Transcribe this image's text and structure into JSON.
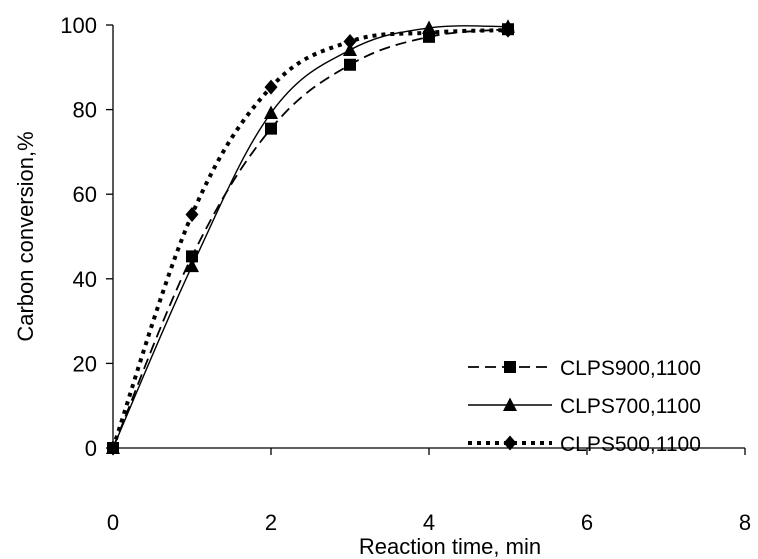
{
  "chart_data": {
    "type": "line",
    "title": "",
    "xlabel": "Reaction time, min",
    "ylabel": "Carbon conversion,%",
    "xlim": [
      0,
      8
    ],
    "ylim": [
      0,
      100
    ],
    "x_ticks": [
      "0",
      "2",
      "4",
      "6",
      "8"
    ],
    "y_ticks": [
      "0",
      "20",
      "40",
      "60",
      "80",
      "100"
    ],
    "grid": false,
    "legend_position": "bottom-right",
    "series": [
      {
        "name": "CLPS900,1100",
        "marker": "square",
        "line_style": "dashed",
        "points": [
          [
            0,
            0
          ],
          [
            1,
            45.3
          ],
          [
            2,
            75.5
          ],
          [
            3,
            90.6
          ],
          [
            4,
            97.2
          ],
          [
            5,
            99.0
          ]
        ]
      },
      {
        "name": "CLPS700,1100",
        "marker": "triangle",
        "line_style": "solid",
        "points": [
          [
            0,
            0
          ],
          [
            1,
            43.0
          ],
          [
            2,
            79.2
          ],
          [
            3,
            94.1
          ],
          [
            4,
            99.3
          ],
          [
            5,
            99.6
          ]
        ]
      },
      {
        "name": "CLPS500,1100",
        "marker": "diamond",
        "line_style": "dotted",
        "points": [
          [
            0,
            0
          ],
          [
            1,
            55.2
          ],
          [
            2,
            85.3
          ],
          [
            3,
            96.1
          ],
          [
            4,
            98.2
          ],
          [
            5,
            98.8
          ]
        ]
      }
    ]
  }
}
